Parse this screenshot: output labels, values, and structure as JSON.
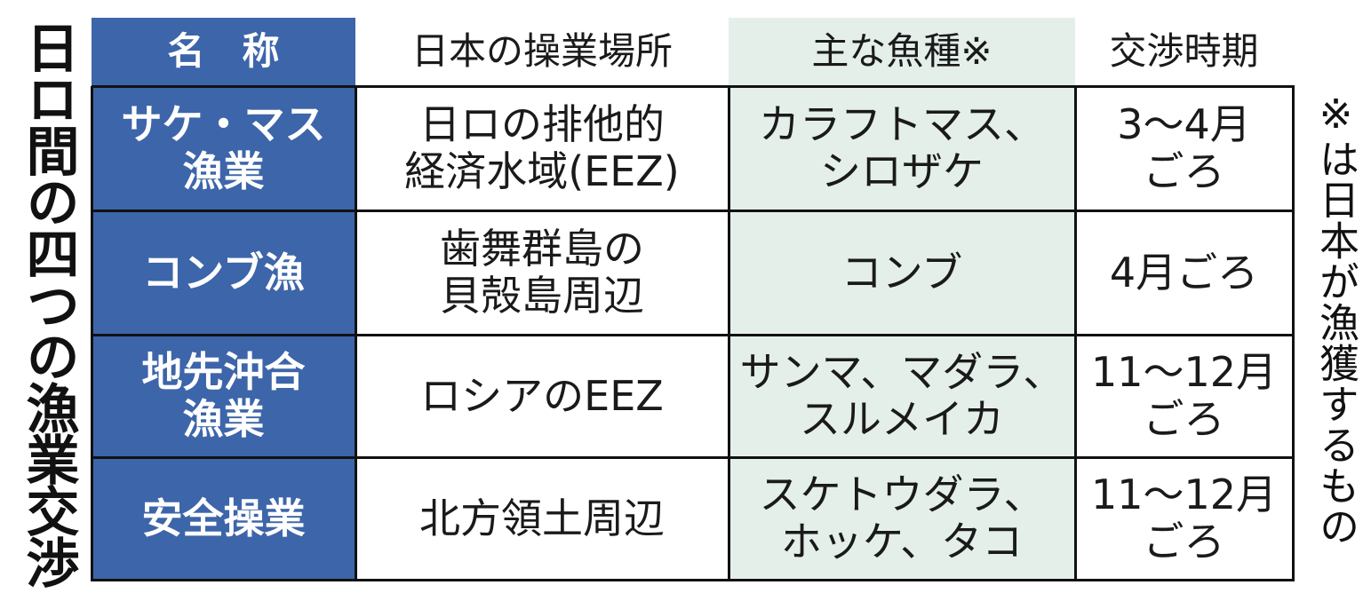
{
  "header": {
    "title": "日ロ間の四つの漁業交渉",
    "note": "※は日本が漁獲するもの"
  },
  "table": {
    "columns": [
      "名　称",
      "日本の操業場所",
      "主な魚種※",
      "交渉時期"
    ],
    "rows": [
      [
        "サケ・マス\n漁業",
        "日ロの排他的\n経済水域(EEZ)",
        "カラフトマス、\nシロザケ",
        "3～4月\nごろ"
      ],
      [
        "コンブ漁",
        "歯舞群島の\n貝殻島周辺",
        "コンブ",
        "4月ごろ"
      ],
      [
        "地先沖合\n漁業",
        "ロシアのEEZ",
        "サンマ、マダラ、\nスルメイカ",
        "11～12月\nごろ"
      ],
      [
        "安全操業",
        "北方領土周辺",
        "スケトウダラ、\nホッケ、タコ",
        "11～12月\nごろ"
      ]
    ]
  }
}
